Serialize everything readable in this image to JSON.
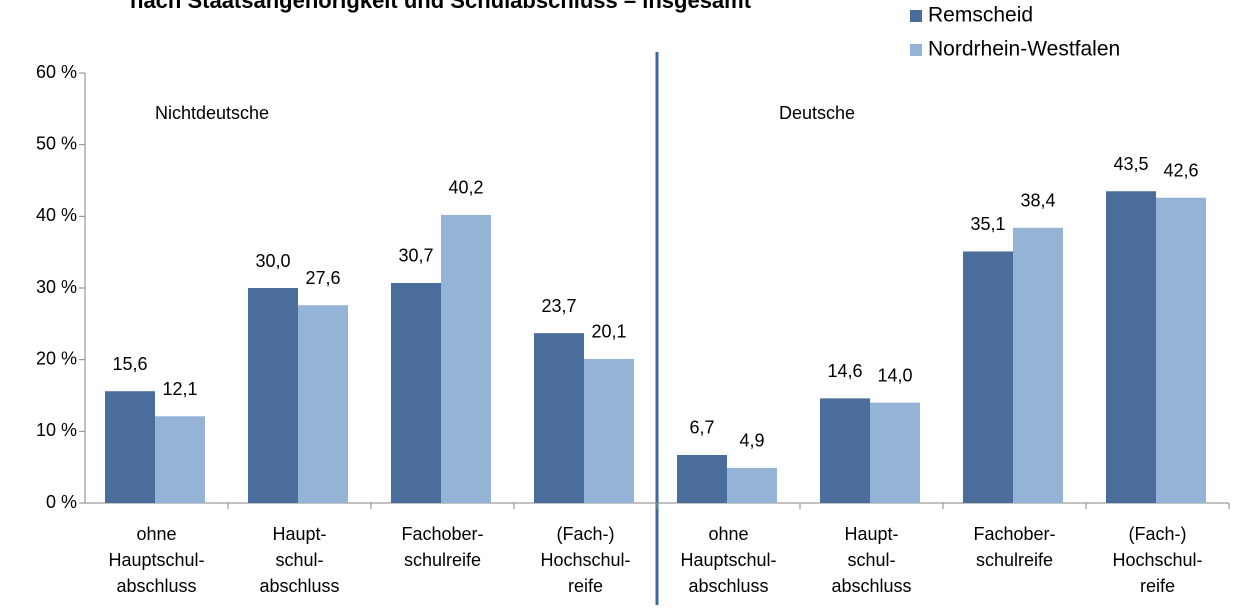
{
  "chart_data": {
    "type": "bar",
    "title": "nach Staatsangehörigkeit und Schulabschluss – insgesamt",
    "categories": [
      [
        "ohne",
        "Hauptschul-",
        "abschluss"
      ],
      [
        "Haupt-",
        "schul-",
        "abschluss"
      ],
      [
        "Fachober-",
        "schulreife"
      ],
      [
        "(Fach-)",
        "Hochschul-",
        "reife"
      ],
      [
        "ohne",
        "Hauptschul-",
        "abschluss"
      ],
      [
        "Haupt-",
        "schul-",
        "abschluss"
      ],
      [
        "Fachober-",
        "schulreife"
      ],
      [
        "(Fach-)",
        "Hochschul-",
        "reife"
      ]
    ],
    "series": [
      {
        "name": "Remscheid",
        "color": "#4a6d9b",
        "values": [
          15.6,
          30.0,
          30.7,
          23.7,
          6.7,
          14.6,
          35.1,
          43.5
        ],
        "value_labels": [
          "15,6",
          "30,0",
          "30,7",
          "23,7",
          "6,7",
          "14,6",
          "35,1",
          "43,5"
        ]
      },
      {
        "name": "Nordrhein-Westfalen",
        "color": "#95b3d7",
        "values": [
          12.1,
          27.6,
          40.2,
          20.1,
          4.9,
          14.0,
          38.4,
          42.6
        ],
        "value_labels": [
          "12,1",
          "27,6",
          "40,2",
          "20,1",
          "4,9",
          "14,0",
          "38,4",
          "42,6"
        ]
      }
    ],
    "annotations": [
      "Nichtdeutsche",
      "Deutsche"
    ],
    "ylim": [
      0,
      60
    ],
    "yticks": [
      {
        "value": 0,
        "label": "0 %"
      },
      {
        "value": 10,
        "label": "10 %"
      },
      {
        "value": 20,
        "label": "20 %"
      },
      {
        "value": 30,
        "label": "30 %"
      },
      {
        "value": 40,
        "label": "40 %"
      },
      {
        "value": 50,
        "label": "50 %"
      },
      {
        "value": 60,
        "label": "60 %"
      }
    ],
    "legend": "top-right"
  }
}
